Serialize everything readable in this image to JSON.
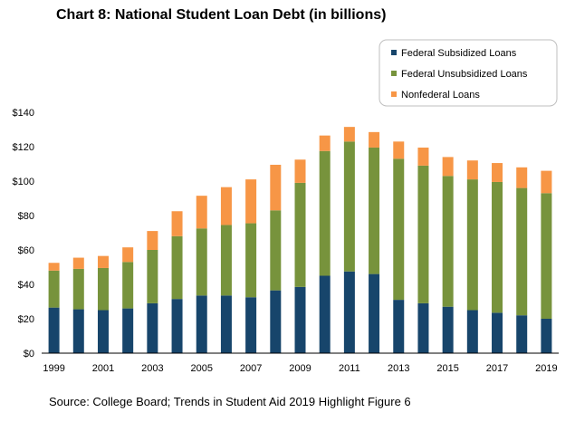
{
  "chart_data": {
    "type": "bar",
    "stacked": true,
    "title": "Chart 8: National Student Loan Debt (in billions)",
    "source": "Source: College Board; Trends in Student Aid 2019 Highlight Figure 6",
    "categories": [
      "1999",
      "2000",
      "2001",
      "2002",
      "2003",
      "2004",
      "2005",
      "2006",
      "2007",
      "2008",
      "2009",
      "2010",
      "2011",
      "2012",
      "2013",
      "2014",
      "2015",
      "2016",
      "2017",
      "2018",
      "2019"
    ],
    "x_tick_labels": [
      "1999",
      "2001",
      "2003",
      "2005",
      "2007",
      "2009",
      "2011",
      "2013",
      "2015",
      "2017",
      "2019"
    ],
    "y_tick_labels": [
      "$0",
      "$20",
      "$40",
      "$60",
      "$80",
      "$100",
      "$120",
      "$140"
    ],
    "y_ticks": [
      0,
      20,
      40,
      60,
      80,
      100,
      120,
      140
    ],
    "ylim": [
      0,
      140
    ],
    "grid": false,
    "legend_position": "top-right",
    "series": [
      {
        "name": "Federal Subsidized Loans",
        "color": "#17456b",
        "values": [
          26.5,
          25.5,
          25,
          26,
          29,
          31.5,
          33.5,
          33.5,
          32.5,
          36.5,
          38.5,
          45,
          47.5,
          46,
          31,
          29,
          27,
          25,
          23.5,
          22,
          20
        ]
      },
      {
        "name": "Federal Unsubsidized Loans",
        "color": "#77933c",
        "values": [
          21.5,
          23.5,
          24.5,
          27,
          31,
          36.5,
          39,
          41,
          43,
          46.5,
          60.5,
          72.5,
          75.5,
          73.5,
          82,
          80,
          76,
          76,
          76,
          74,
          73
        ]
      },
      {
        "name": "Nonfederal Loans",
        "color": "#f79646",
        "values": [
          4.5,
          6.5,
          7,
          8.5,
          11,
          14.5,
          19,
          22,
          25.5,
          26.5,
          13.5,
          9,
          8.5,
          9,
          10,
          10.5,
          11,
          11,
          11,
          12,
          13
        ]
      }
    ]
  }
}
